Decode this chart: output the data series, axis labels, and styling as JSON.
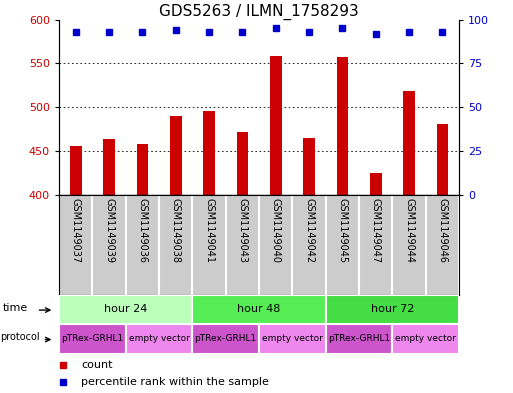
{
  "title": "GDS5263 / ILMN_1758293",
  "samples": [
    "GSM1149037",
    "GSM1149039",
    "GSM1149036",
    "GSM1149038",
    "GSM1149041",
    "GSM1149043",
    "GSM1149040",
    "GSM1149042",
    "GSM1149045",
    "GSM1149047",
    "GSM1149044",
    "GSM1149046"
  ],
  "counts": [
    456,
    464,
    458,
    490,
    496,
    472,
    558,
    465,
    557,
    425,
    518,
    481
  ],
  "percentiles": [
    93,
    93,
    93,
    94,
    93,
    93,
    95,
    93,
    95,
    92,
    93,
    93
  ],
  "ylim_left": [
    400,
    600
  ],
  "yticks_left": [
    400,
    450,
    500,
    550,
    600
  ],
  "ylim_right": [
    0,
    100
  ],
  "yticks_right": [
    0,
    25,
    50,
    75,
    100
  ],
  "bar_color": "#cc0000",
  "dot_color": "#0000cc",
  "bar_bottom": 400,
  "time_groups": [
    {
      "label": "hour 24",
      "start": 0,
      "end": 3,
      "color": "#bbffbb"
    },
    {
      "label": "hour 48",
      "start": 4,
      "end": 7,
      "color": "#55ee55"
    },
    {
      "label": "hour 72",
      "start": 8,
      "end": 11,
      "color": "#44dd44"
    }
  ],
  "protocol_groups": [
    {
      "label": "pTRex-GRHL1",
      "start": 0,
      "end": 1,
      "color": "#cc55cc"
    },
    {
      "label": "empty vector",
      "start": 2,
      "end": 3,
      "color": "#ee88ee"
    },
    {
      "label": "pTRex-GRHL1",
      "start": 4,
      "end": 5,
      "color": "#cc55cc"
    },
    {
      "label": "empty vector",
      "start": 6,
      "end": 7,
      "color": "#ee88ee"
    },
    {
      "label": "pTRex-GRHL1",
      "start": 8,
      "end": 9,
      "color": "#cc55cc"
    },
    {
      "label": "empty vector",
      "start": 10,
      "end": 11,
      "color": "#ee88ee"
    }
  ],
  "legend_count_color": "#cc0000",
  "legend_dot_color": "#0000cc",
  "grid_color": "#000000",
  "background_color": "#ffffff",
  "sample_bg_color": "#cccccc",
  "title_fontsize": 11,
  "tick_fontsize": 8,
  "label_fontsize": 8,
  "sample_fontsize": 7
}
